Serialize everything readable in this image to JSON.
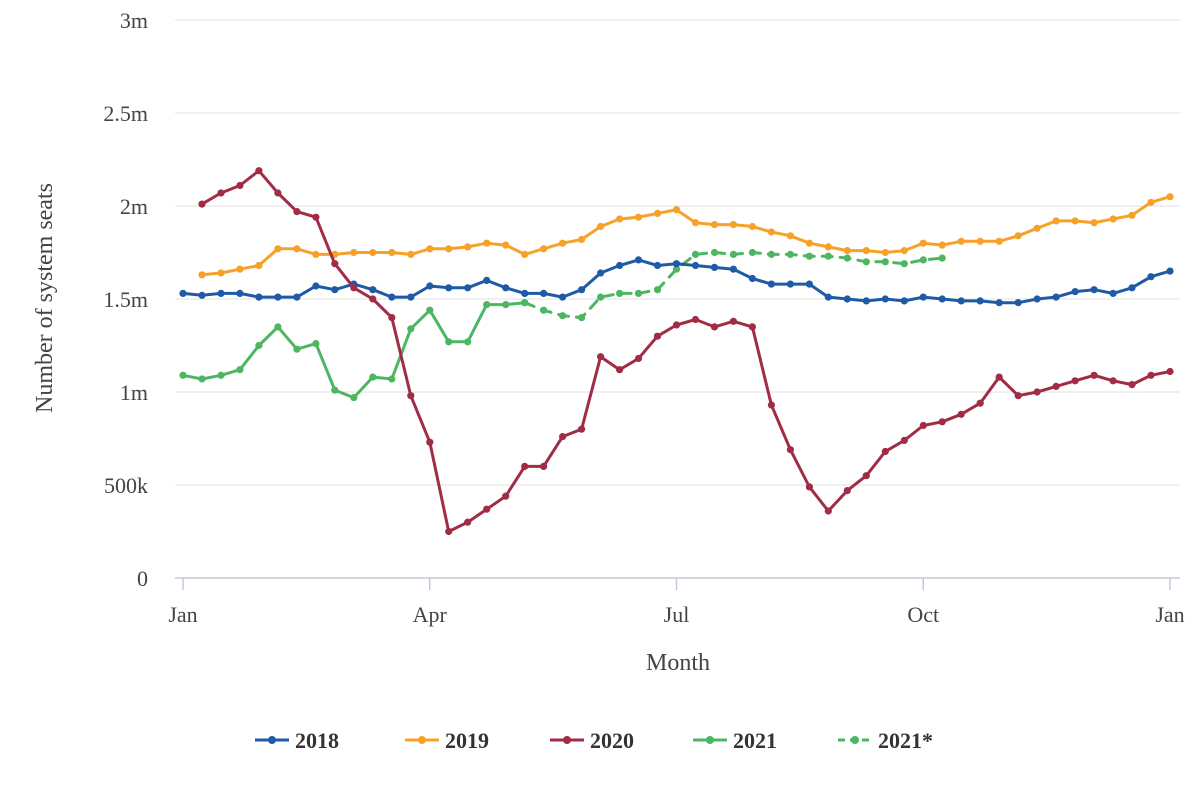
{
  "chart_data": {
    "type": "line",
    "xlabel": "Month",
    "ylabel": "Number of system seats",
    "x_ticks": [
      "Jan",
      "Apr",
      "Jul",
      "Oct",
      "Jan"
    ],
    "y_ticks": [
      "0",
      "500k",
      "1m",
      "1.5m",
      "2m",
      "2.5m",
      "3m"
    ],
    "ylim": [
      0,
      3000000
    ],
    "xlim_weeks": [
      0,
      52
    ],
    "grid": "horizontal",
    "legend_position": "bottom-center",
    "series": [
      {
        "name": "2018",
        "color": "#1f5aa6",
        "dashed": false,
        "x": [
          0,
          1,
          2,
          3,
          4,
          5,
          6,
          7,
          8,
          9,
          10,
          11,
          12,
          13,
          14,
          15,
          16,
          17,
          18,
          19,
          20,
          21,
          22,
          23,
          24,
          25,
          26,
          27,
          28,
          29,
          30,
          31,
          32,
          33,
          34,
          35,
          36,
          37,
          38,
          39,
          40,
          41,
          42,
          43,
          44,
          45,
          46,
          47,
          48,
          49,
          50,
          51,
          52
        ],
        "values": [
          1530000,
          1520000,
          1530000,
          1530000,
          1510000,
          1510000,
          1510000,
          1570000,
          1550000,
          1580000,
          1550000,
          1510000,
          1510000,
          1570000,
          1560000,
          1560000,
          1600000,
          1560000,
          1530000,
          1530000,
          1510000,
          1550000,
          1640000,
          1680000,
          1710000,
          1680000,
          1690000,
          1680000,
          1670000,
          1660000,
          1610000,
          1580000,
          1580000,
          1580000,
          1510000,
          1500000,
          1490000,
          1500000,
          1490000,
          1510000,
          1500000,
          1490000,
          1490000,
          1480000,
          1480000,
          1500000,
          1510000,
          1540000,
          1550000,
          1530000,
          1560000,
          1620000,
          1650000
        ]
      },
      {
        "name": "2019",
        "color": "#f7a128",
        "dashed": false,
        "x": [
          1,
          2,
          3,
          4,
          5,
          6,
          7,
          8,
          9,
          10,
          11,
          12,
          13,
          14,
          15,
          16,
          17,
          18,
          19,
          20,
          21,
          22,
          23,
          24,
          25,
          26,
          27,
          28,
          29,
          30,
          31,
          32,
          33,
          34,
          35,
          36,
          37,
          38,
          39,
          40,
          41,
          42,
          43,
          44,
          45,
          46,
          47,
          48,
          49,
          50,
          51,
          52
        ],
        "values": [
          1630000,
          1640000,
          1660000,
          1680000,
          1770000,
          1770000,
          1740000,
          1740000,
          1750000,
          1750000,
          1750000,
          1740000,
          1770000,
          1770000,
          1780000,
          1800000,
          1790000,
          1740000,
          1770000,
          1800000,
          1820000,
          1890000,
          1930000,
          1940000,
          1960000,
          1980000,
          1910000,
          1900000,
          1900000,
          1890000,
          1860000,
          1840000,
          1800000,
          1780000,
          1760000,
          1760000,
          1750000,
          1760000,
          1800000,
          1790000,
          1810000,
          1810000,
          1810000,
          1840000,
          1880000,
          1920000,
          1920000,
          1910000,
          1930000,
          1950000,
          2020000,
          2050000
        ]
      },
      {
        "name": "2020",
        "color": "#a02c45",
        "dashed": false,
        "x": [
          1,
          2,
          3,
          4,
          5,
          6,
          7,
          8,
          9,
          10,
          11,
          12,
          13,
          14,
          15,
          16,
          17,
          18,
          19,
          20,
          21,
          22,
          23,
          24,
          25,
          26,
          27,
          28,
          29,
          30,
          31,
          32,
          33,
          34,
          35,
          36,
          37,
          38,
          39,
          40,
          41,
          42,
          43,
          44,
          45,
          46,
          47,
          48,
          49,
          50,
          51,
          52
        ],
        "values": [
          2010000,
          2070000,
          2110000,
          2190000,
          2070000,
          1970000,
          1940000,
          1690000,
          1560000,
          1500000,
          1400000,
          980000,
          730000,
          250000,
          300000,
          370000,
          440000,
          600000,
          600000,
          760000,
          800000,
          1190000,
          1120000,
          1180000,
          1300000,
          1360000,
          1390000,
          1350000,
          1380000,
          1350000,
          930000,
          690000,
          490000,
          360000,
          470000,
          550000,
          680000,
          740000,
          820000,
          840000,
          880000,
          940000,
          1080000,
          980000,
          1000000,
          1030000,
          1060000,
          1090000,
          1060000,
          1040000,
          1090000,
          1110000
        ]
      },
      {
        "name": "2021",
        "color": "#4cb662",
        "dashed": false,
        "x": [
          0,
          1,
          2,
          3,
          4,
          5,
          6,
          7,
          8,
          9,
          10,
          11,
          12,
          13,
          14,
          15,
          16,
          17,
          18
        ],
        "values": [
          1090000,
          1070000,
          1090000,
          1120000,
          1250000,
          1350000,
          1230000,
          1260000,
          1010000,
          970000,
          1080000,
          1070000,
          1340000,
          1440000,
          1270000,
          1270000,
          1470000,
          1470000,
          1480000
        ]
      },
      {
        "name": "2021*",
        "color": "#4cb662",
        "dashed": true,
        "x": [
          18,
          19,
          20,
          21,
          22,
          23,
          24,
          25,
          26,
          27,
          28,
          29,
          30,
          31,
          32,
          33,
          34,
          35,
          36,
          37,
          38,
          39,
          40
        ],
        "values": [
          1480000,
          1440000,
          1410000,
          1400000,
          1510000,
          1530000,
          1530000,
          1550000,
          1660000,
          1740000,
          1750000,
          1740000,
          1750000,
          1740000,
          1740000,
          1730000,
          1730000,
          1720000,
          1700000,
          1700000,
          1690000,
          1710000,
          1720000
        ]
      }
    ]
  }
}
